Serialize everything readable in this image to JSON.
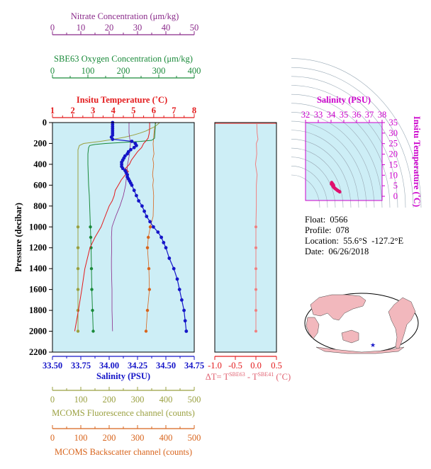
{
  "colors": {
    "nitrate": "#8a2a8a",
    "oxygen": "#1a8a3a",
    "temperature": "#e31a1c",
    "salinity": "#1515c8",
    "fluorescence": "#9aa040",
    "backscatter": "#d8641c",
    "plot_bg": "#cdeef6",
    "ts_axis": "#cc00cc",
    "ts_points": "#e0106e",
    "map_land": "#f2b8bd",
    "map_ocean": "#ffffff"
  },
  "info": {
    "float": "Float:  0566",
    "profile": "Profile:  078",
    "location": "Location:  55.6°S  -127.2°E",
    "date": "Date:  06/26/2018"
  },
  "chart_data": [
    {
      "type": "line",
      "id": "main-profile",
      "y_axis": {
        "label": "Pressure (decibar)",
        "range": [
          0,
          2200
        ],
        "inverted": true,
        "ticks": [
          "0",
          "200",
          "400",
          "600",
          "800",
          "1000",
          "1200",
          "1400",
          "1600",
          "1800",
          "2000",
          "2200"
        ]
      },
      "axes": {
        "nitrate": {
          "label": "Nitrate Concentration (μm/kg)",
          "range": [
            0,
            50
          ],
          "ticks": [
            "0",
            "10",
            "20",
            "30",
            "40",
            "50"
          ]
        },
        "oxygen": {
          "label": "SBE63 Oxygen Concentration (μm/kg)",
          "range": [
            0,
            400
          ],
          "ticks": [
            "0",
            "100",
            "200",
            "300",
            "400"
          ]
        },
        "temperature": {
          "label": "Insitu Temperature (˚C)",
          "range": [
            1,
            8
          ],
          "ticks": [
            "1",
            "2",
            "3",
            "4",
            "5",
            "6",
            "7",
            "8"
          ]
        },
        "salinity": {
          "label": "Salinity (PSU)",
          "range": [
            33.5,
            34.75
          ],
          "ticks": [
            "33.50",
            "33.75",
            "34.00",
            "34.25",
            "34.50",
            "34.75"
          ]
        },
        "fluorescence": {
          "label": "MCOMS Fluorescence channel (counts)",
          "range": [
            0,
            500
          ],
          "ticks": [
            "0",
            "100",
            "200",
            "300",
            "400",
            "500"
          ]
        },
        "backscatter": {
          "label": "MCOMS Backscatter channel (counts)",
          "range": [
            0,
            500
          ],
          "ticks": [
            "0",
            "100",
            "200",
            "300",
            "400",
            "500"
          ]
        }
      },
      "series": [
        {
          "key": "salinity",
          "points": [
            [
              0,
              34.03
            ],
            [
              20,
              34.03
            ],
            [
              40,
              34.03
            ],
            [
              60,
              34.03
            ],
            [
              80,
              34.03
            ],
            [
              100,
              34.03
            ],
            [
              120,
              34.03
            ],
            [
              140,
              34.02
            ],
            [
              160,
              34.03
            ],
            [
              180,
              34.2
            ],
            [
              200,
              34.23
            ],
            [
              220,
              34.24
            ],
            [
              240,
              34.22
            ],
            [
              260,
              34.19
            ],
            [
              280,
              34.17
            ],
            [
              300,
              34.16
            ],
            [
              320,
              34.14
            ],
            [
              340,
              34.13
            ],
            [
              360,
              34.12
            ],
            [
              380,
              34.11
            ],
            [
              400,
              34.11
            ],
            [
              420,
              34.11
            ],
            [
              440,
              34.12
            ],
            [
              460,
              34.14
            ],
            [
              480,
              34.15
            ],
            [
              500,
              34.16
            ],
            [
              520,
              34.16
            ],
            [
              540,
              34.17
            ],
            [
              560,
              34.18
            ],
            [
              580,
              34.19
            ],
            [
              600,
              34.2
            ],
            [
              650,
              34.22
            ],
            [
              700,
              34.24
            ],
            [
              750,
              34.26
            ],
            [
              800,
              34.29
            ],
            [
              850,
              34.31
            ],
            [
              900,
              34.33
            ],
            [
              950,
              34.36
            ],
            [
              1000,
              34.39
            ],
            [
              1050,
              34.43
            ],
            [
              1100,
              34.46
            ],
            [
              1150,
              34.48
            ],
            [
              1200,
              34.5
            ],
            [
              1300,
              34.53
            ],
            [
              1400,
              34.57
            ],
            [
              1500,
              34.6
            ],
            [
              1600,
              34.62
            ],
            [
              1700,
              34.64
            ],
            [
              1800,
              34.66
            ],
            [
              1900,
              34.67
            ],
            [
              2000,
              34.68
            ]
          ]
        },
        {
          "key": "temperature",
          "points": [
            [
              0,
              5.8
            ],
            [
              50,
              5.8
            ],
            [
              100,
              5.78
            ],
            [
              150,
              5.72
            ],
            [
              180,
              5.6
            ],
            [
              200,
              5.5
            ],
            [
              240,
              5.4
            ],
            [
              280,
              5.2
            ],
            [
              320,
              5.05
            ],
            [
              360,
              4.9
            ],
            [
              400,
              4.8
            ],
            [
              440,
              4.6
            ],
            [
              470,
              4.75
            ],
            [
              500,
              4.6
            ],
            [
              550,
              4.4
            ],
            [
              600,
              4.25
            ],
            [
              650,
              4.1
            ],
            [
              700,
              4.05
            ],
            [
              750,
              3.95
            ],
            [
              800,
              3.8
            ],
            [
              900,
              3.6
            ],
            [
              1000,
              3.4
            ],
            [
              1100,
              3.1
            ],
            [
              1200,
              2.85
            ],
            [
              1400,
              2.6
            ],
            [
              1600,
              2.45
            ],
            [
              1800,
              2.28
            ],
            [
              2000,
              2.1
            ]
          ]
        },
        {
          "key": "oxygen",
          "points": [
            [
              0,
              290
            ],
            [
              50,
              290
            ],
            [
              100,
              289
            ],
            [
              150,
              288
            ],
            [
              170,
              280
            ],
            [
              180,
              250
            ],
            [
              190,
              200
            ],
            [
              200,
              150
            ],
            [
              210,
              120
            ],
            [
              220,
              105
            ],
            [
              240,
              102
            ],
            [
              300,
              100
            ],
            [
              400,
              100
            ],
            [
              500,
              101
            ],
            [
              600,
              102
            ],
            [
              700,
              104
            ],
            [
              800,
              105
            ],
            [
              900,
              106
            ],
            [
              1000,
              107
            ],
            [
              1100,
              108
            ],
            [
              1200,
              109
            ],
            [
              1400,
              110
            ],
            [
              1600,
              111
            ],
            [
              1800,
              113
            ],
            [
              2000,
              115
            ]
          ]
        },
        {
          "key": "nitrate",
          "points": [
            [
              0,
              27
            ],
            [
              100,
              27
            ],
            [
              200,
              27.5
            ],
            [
              300,
              27.2
            ],
            [
              400,
              26.5
            ],
            [
              500,
              26.2
            ],
            [
              600,
              25.8
            ],
            [
              700,
              25
            ],
            [
              800,
              23.8
            ],
            [
              900,
              22.3
            ],
            [
              1000,
              21
            ],
            [
              1100,
              20.8
            ],
            [
              1200,
              20.9
            ],
            [
              1300,
              20.8
            ],
            [
              1400,
              20.8
            ],
            [
              1500,
              20.9
            ],
            [
              1600,
              21
            ],
            [
              1700,
              21
            ],
            [
              1800,
              21
            ],
            [
              1900,
              21.1
            ],
            [
              2000,
              21.2
            ]
          ]
        },
        {
          "key": "fluorescence",
          "points": [
            [
              0,
              378
            ],
            [
              20,
              370
            ],
            [
              40,
              360
            ],
            [
              60,
              345
            ],
            [
              80,
              330
            ],
            [
              100,
              310
            ],
            [
              120,
              285
            ],
            [
              140,
              255
            ],
            [
              160,
              215
            ],
            [
              180,
              170
            ],
            [
              190,
              140
            ],
            [
              200,
              110
            ],
            [
              220,
              95
            ],
            [
              260,
              90
            ],
            [
              400,
              90
            ],
            [
              600,
              90
            ],
            [
              800,
              90
            ],
            [
              1000,
              90
            ],
            [
              1200,
              90
            ],
            [
              1400,
              90
            ],
            [
              1600,
              90
            ],
            [
              1800,
              90
            ],
            [
              2000,
              90
            ]
          ]
        },
        {
          "key": "backscatter",
          "points": [
            [
              0,
              365
            ],
            [
              30,
              362
            ],
            [
              60,
              360
            ],
            [
              100,
              358
            ],
            [
              150,
              357
            ],
            [
              200,
              355
            ],
            [
              250,
              356
            ],
            [
              300,
              358
            ],
            [
              350,
              354
            ],
            [
              400,
              357
            ],
            [
              450,
              355
            ],
            [
              500,
              353
            ],
            [
              550,
              356
            ],
            [
              600,
              354
            ],
            [
              700,
              357
            ],
            [
              800,
              356
            ],
            [
              900,
              355
            ],
            [
              1000,
              345
            ],
            [
              1100,
              338
            ],
            [
              1200,
              335
            ],
            [
              1400,
              340
            ],
            [
              1600,
              342
            ],
            [
              1800,
              335
            ],
            [
              2000,
              330
            ]
          ]
        }
      ]
    },
    {
      "type": "line",
      "id": "delta-t",
      "x_axis": {
        "label": "ΔT= T",
        "sup1": "SBE63",
        "mid": " - T",
        "sup2": "SBE41",
        "unit": " (˚C)",
        "range": [
          -1,
          0.5
        ],
        "ticks": [
          "-1.0",
          "-0.5",
          "0.0",
          "0.5"
        ]
      },
      "series": [
        {
          "name": "ΔT",
          "points": [
            [
              0,
              0.02
            ],
            [
              100,
              0.03
            ],
            [
              160,
              0.05
            ],
            [
              200,
              0.01
            ],
            [
              300,
              0.02
            ],
            [
              400,
              -0.01
            ],
            [
              500,
              0.03
            ],
            [
              600,
              0.01
            ],
            [
              800,
              0.01
            ],
            [
              1000,
              0.0
            ],
            [
              1200,
              0.0
            ],
            [
              1400,
              0.0
            ],
            [
              1600,
              0.0
            ],
            [
              1800,
              0.0
            ],
            [
              2000,
              0.0
            ]
          ]
        }
      ]
    },
    {
      "type": "scatter",
      "id": "ts-diagram",
      "x_axis": {
        "label": "Salinity (PSU)",
        "range": [
          32,
          38
        ],
        "ticks": [
          "32",
          "33",
          "34",
          "35",
          "36",
          "37",
          "38"
        ]
      },
      "y_axis": {
        "label": "Insitu Temperature (˚C)",
        "range": [
          -2,
          35
        ],
        "ticks": [
          "0",
          "5",
          "10",
          "15",
          "20",
          "25",
          "30",
          "35"
        ]
      },
      "points": [
        [
          34.03,
          5.8
        ],
        [
          34.1,
          5.5
        ],
        [
          34.2,
          5.1
        ],
        [
          34.15,
          4.8
        ],
        [
          34.2,
          4.4
        ],
        [
          34.25,
          4.1
        ],
        [
          34.3,
          3.8
        ],
        [
          34.38,
          3.4
        ],
        [
          34.46,
          3.0
        ],
        [
          34.52,
          2.7
        ],
        [
          34.58,
          2.5
        ],
        [
          34.64,
          2.3
        ],
        [
          34.68,
          2.1
        ],
        [
          34.05,
          6.5
        ],
        [
          34.12,
          5.9
        ],
        [
          34.18,
          5.4
        ]
      ]
    }
  ]
}
